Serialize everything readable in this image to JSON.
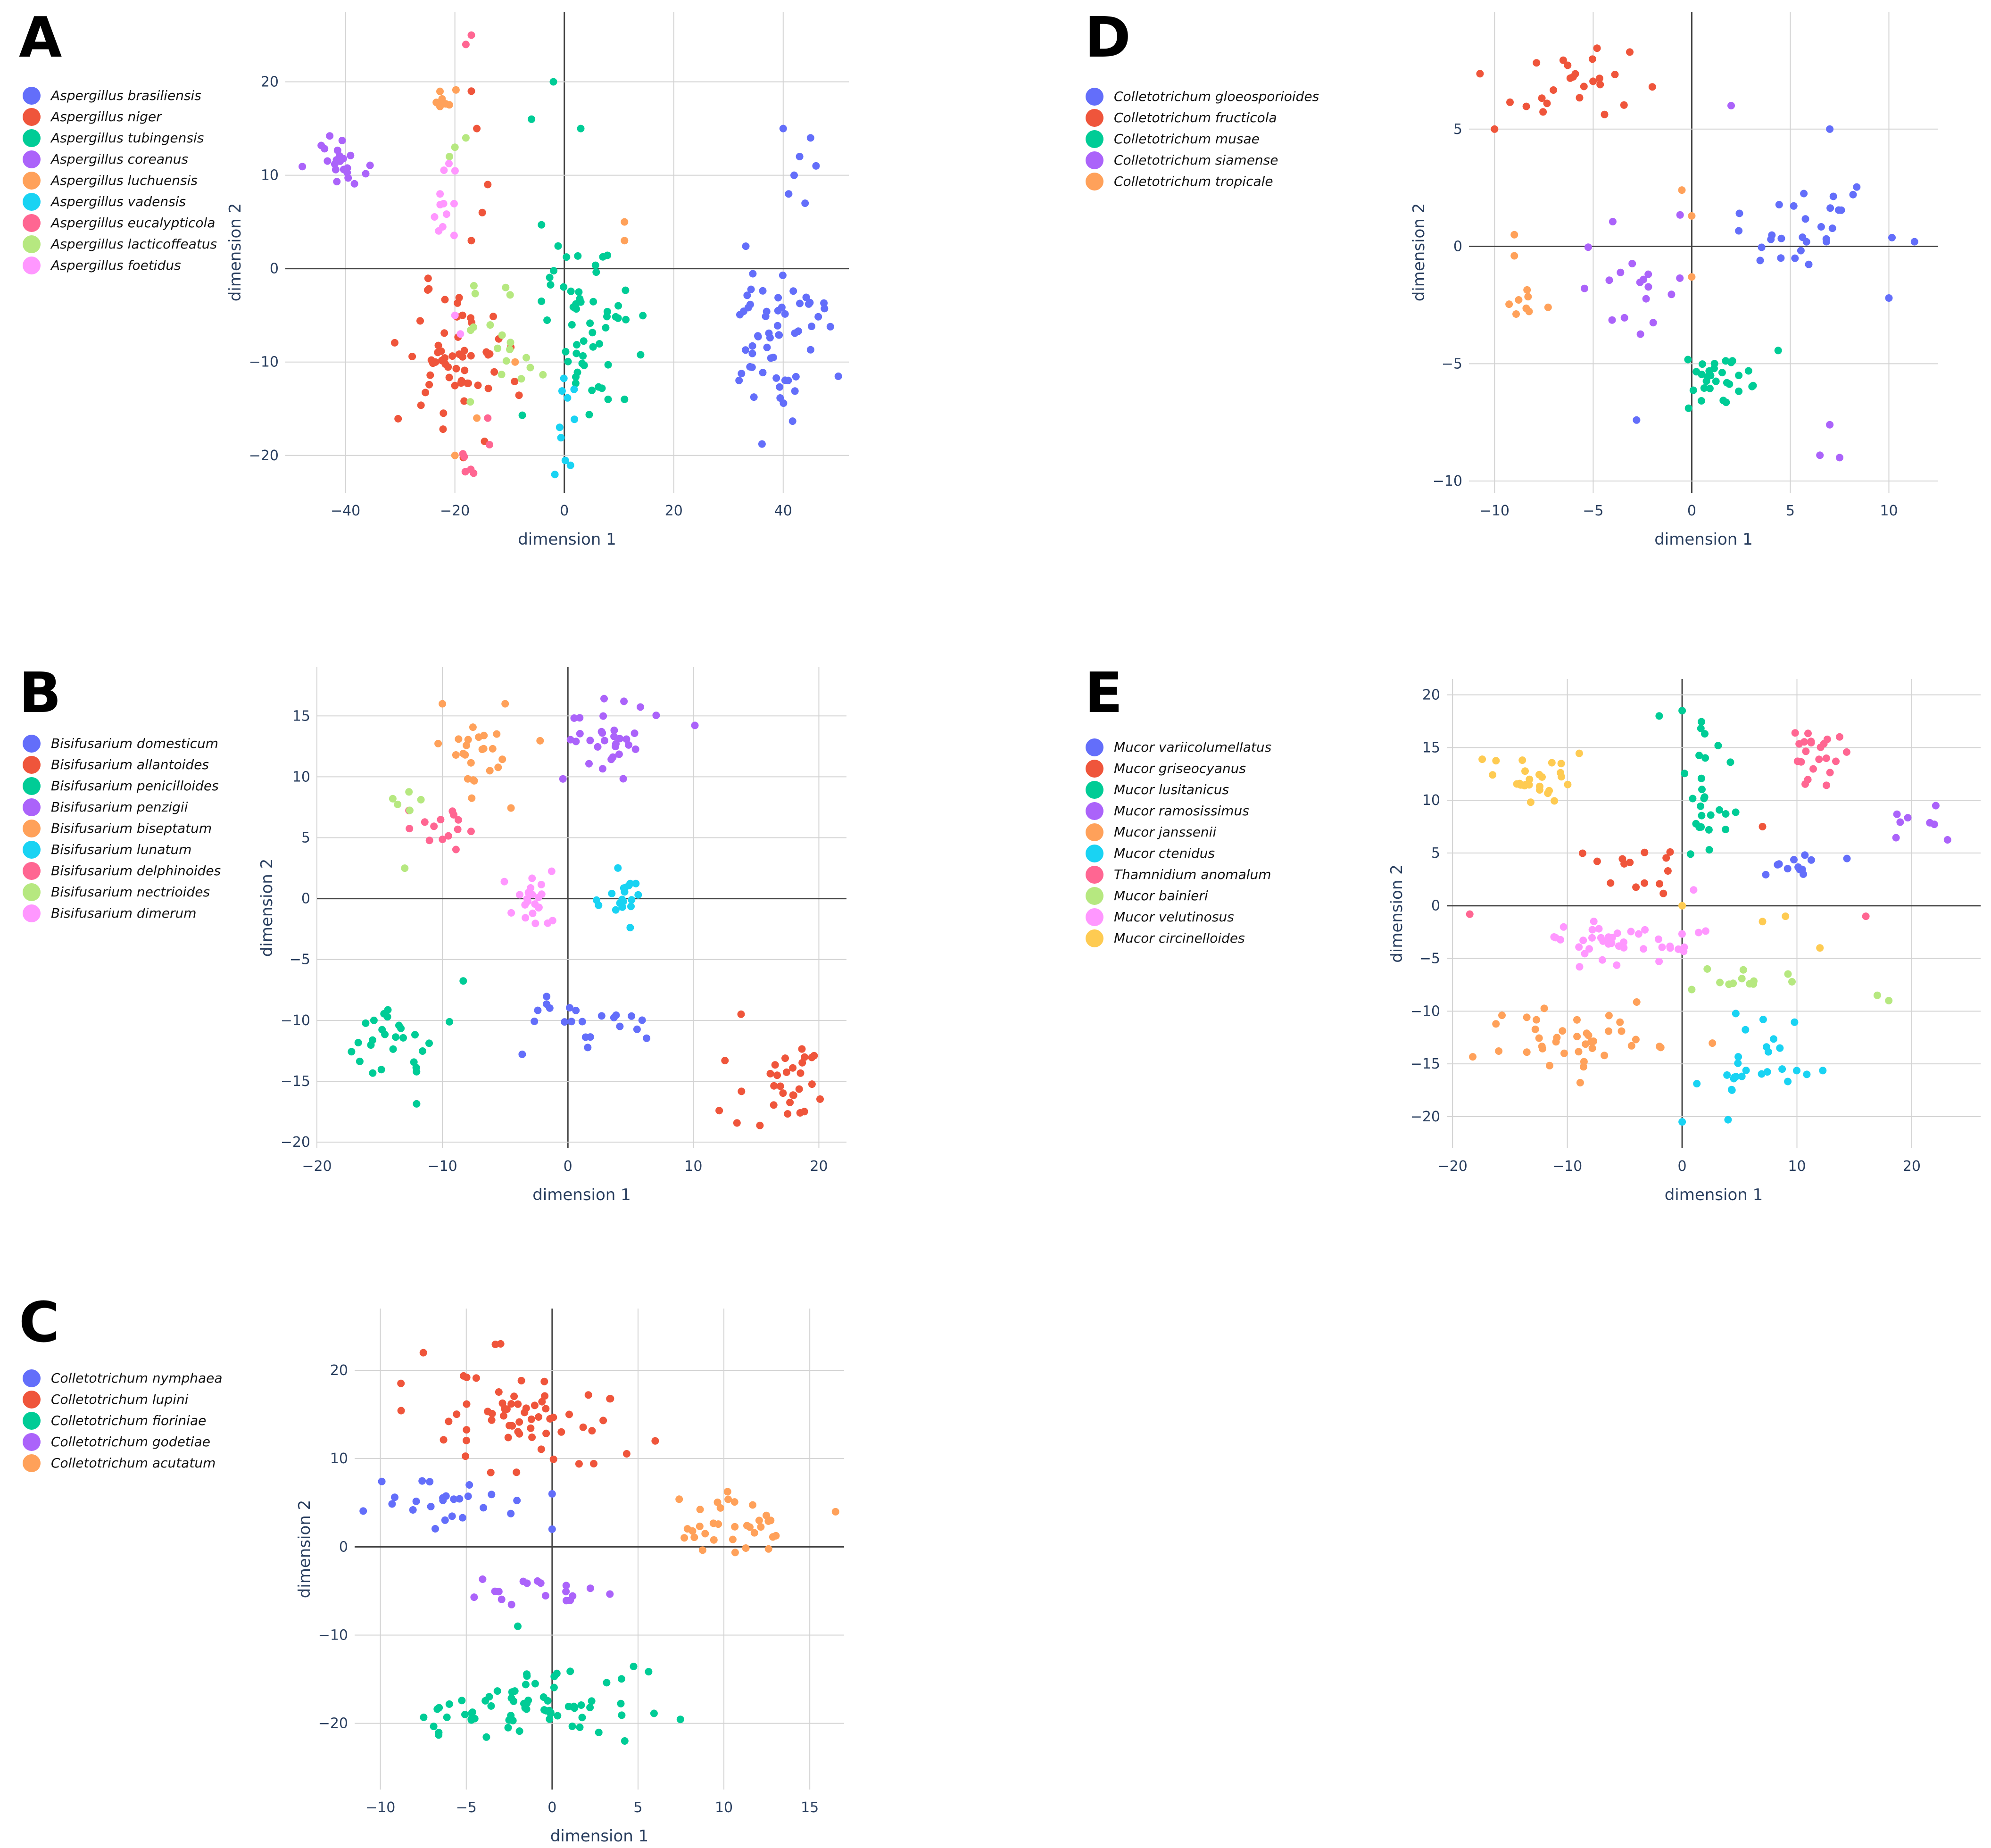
{
  "chart_data": [
    {
      "panel": "A",
      "type": "scatter",
      "xlabel": "dimension 1",
      "ylabel": "dimension 2",
      "xlim": [
        -51,
        52
      ],
      "ylim": [
        -24,
        27.5
      ],
      "xticks": [
        -40,
        -20,
        0,
        20,
        40
      ],
      "yticks": [
        -20,
        -10,
        0,
        10,
        20
      ],
      "xtick_labels": [
        "−40",
        "−20",
        "0",
        "20",
        "40"
      ],
      "ytick_labels": [
        "−20",
        "−10",
        "0",
        "10",
        "20"
      ],
      "grid": true,
      "legend_position": "left",
      "series": [
        {
          "name": "Aspergillus brasiliensis",
          "color": "#636efa",
          "center": [
            38,
            -7
          ],
          "spread": [
            6,
            6
          ],
          "n": 60,
          "extra": [
            [
              43,
              12
            ],
            [
              42,
              10
            ],
            [
              45,
              14
            ],
            [
              41,
              8
            ],
            [
              40,
              15
            ],
            [
              46,
              11
            ],
            [
              44,
              7
            ]
          ]
        },
        {
          "name": "Aspergillus niger",
          "color": "#ef553b",
          "center": [
            -20,
            -10
          ],
          "spread": [
            7,
            5
          ],
          "n": 60,
          "extra": [
            [
              -17,
              19
            ],
            [
              -16,
              15
            ],
            [
              -14,
              9
            ],
            [
              -17,
              3
            ],
            [
              -15,
              6
            ]
          ]
        },
        {
          "name": "Aspergillus tubingensis",
          "color": "#00cc96",
          "center": [
            4,
            -5
          ],
          "spread": [
            6,
            8
          ],
          "n": 55,
          "extra": [
            [
              -6,
              16
            ],
            [
              3,
              15
            ],
            [
              -2,
              20
            ],
            [
              8,
              -14
            ],
            [
              11,
              -14
            ]
          ]
        },
        {
          "name": "Aspergillus coreanus",
          "color": "#ab63fa",
          "center": [
            -41,
            11
          ],
          "spread": [
            3,
            2.5
          ],
          "n": 22,
          "extra": []
        },
        {
          "name": "Aspergillus luchuensis",
          "color": "#ffa15a",
          "center": [
            -22,
            18
          ],
          "spread": [
            2.5,
            1.5
          ],
          "n": 8,
          "extra": [
            [
              11,
              5
            ],
            [
              11,
              3
            ],
            [
              -9,
              -10
            ],
            [
              -16,
              -16
            ],
            [
              -20,
              -20
            ]
          ]
        },
        {
          "name": "Aspergillus vadensis",
          "color": "#19d3f3",
          "center": [
            0,
            -17
          ],
          "spread": [
            1.5,
            4
          ],
          "n": 10,
          "extra": []
        },
        {
          "name": "Aspergillus eucalypticola",
          "color": "#ff6692",
          "center": [
            -17,
            -20
          ],
          "spread": [
            2,
            1.5
          ],
          "n": 6,
          "extra": [
            [
              -17,
              25
            ],
            [
              -18,
              24
            ],
            [
              -14,
              -16
            ]
          ]
        },
        {
          "name": "Aspergillus lacticoffeatus",
          "color": "#b6e880",
          "center": [
            -12,
            -8
          ],
          "spread": [
            4,
            5
          ],
          "n": 18,
          "extra": [
            [
              -20,
              13
            ],
            [
              -21,
              12
            ],
            [
              -18,
              14
            ]
          ]
        },
        {
          "name": "Aspergillus foetidus",
          "color": "#ff97ff",
          "center": [
            -23,
            6
          ],
          "spread": [
            2,
            4
          ],
          "n": 12,
          "extra": [
            [
              -20,
              -5
            ],
            [
              -19,
              -7
            ]
          ]
        }
      ]
    },
    {
      "panel": "B",
      "type": "scatter",
      "xlabel": "dimension 1",
      "ylabel": "dimension 2",
      "xlim": [
        -20,
        22.2
      ],
      "ylim": [
        -20.5,
        19
      ],
      "xticks": [
        -20,
        -10,
        0,
        10,
        20
      ],
      "yticks": [
        -20,
        -15,
        -10,
        -5,
        0,
        5,
        10,
        15
      ],
      "xtick_labels": [
        "−20",
        "−10",
        "0",
        "10",
        "20"
      ],
      "ytick_labels": [
        "−20",
        "−15",
        "−10",
        "−5",
        "0",
        "5",
        "10",
        "15"
      ],
      "grid": true,
      "legend_position": "left",
      "series": [
        {
          "name": "Bisifusarium domesticum",
          "color": "#636efa",
          "center": [
            1.5,
            -10.5
          ],
          "spread": [
            3.5,
            1.8
          ],
          "n": 22,
          "extra": []
        },
        {
          "name": "Bisifusarium allantoides",
          "color": "#ef553b",
          "center": [
            17,
            -15
          ],
          "spread": [
            2.5,
            2
          ],
          "n": 30,
          "extra": [
            [
              13.8,
              -9.5
            ]
          ]
        },
        {
          "name": "Bisifusarium penicilloides",
          "color": "#00cc96",
          "center": [
            -13.5,
            -11.5
          ],
          "spread": [
            2.5,
            3
          ],
          "n": 28,
          "extra": []
        },
        {
          "name": "Bisifusarium penzigii",
          "color": "#ab63fa",
          "center": [
            3.5,
            13
          ],
          "spread": [
            3,
            2
          ],
          "n": 32,
          "extra": []
        },
        {
          "name": "Bisifusarium biseptatum",
          "color": "#ffa15a",
          "center": [
            -7,
            12
          ],
          "spread": [
            2.5,
            2.2
          ],
          "n": 24,
          "extra": [
            [
              -10,
              16
            ],
            [
              -5,
              16
            ]
          ]
        },
        {
          "name": "Bisifusarium lunatum",
          "color": "#19d3f3",
          "center": [
            5,
            0
          ],
          "spread": [
            1.5,
            1.6
          ],
          "n": 20,
          "extra": []
        },
        {
          "name": "Bisifusarium delphinoides",
          "color": "#ff6692",
          "center": [
            -10.5,
            6
          ],
          "spread": [
            2,
            1.5
          ],
          "n": 14,
          "extra": []
        },
        {
          "name": "Bisifusarium nectrioides",
          "color": "#b6e880",
          "center": [
            -13.5,
            8.5
          ],
          "spread": [
            1,
            1
          ],
          "n": 5,
          "extra": [
            [
              -13,
              2.5
            ]
          ]
        },
        {
          "name": "Bisifusarium dimerum",
          "color": "#ff97ff",
          "center": [
            -3,
            -0.2
          ],
          "spread": [
            1.5,
            1.4
          ],
          "n": 22,
          "extra": []
        }
      ]
    },
    {
      "panel": "C",
      "type": "scatter",
      "xlabel": "dimension 1",
      "ylabel": "dimension 2",
      "xlim": [
        -11.5,
        17
      ],
      "ylim": [
        -27.5,
        27
      ],
      "xticks": [
        -10,
        -5,
        0,
        5,
        10,
        15
      ],
      "yticks": [
        -20,
        -10,
        0,
        10,
        20
      ],
      "xtick_labels": [
        "−10",
        "−5",
        "0",
        "5",
        "10",
        "15"
      ],
      "ytick_labels": [
        "−20",
        "−10",
        "0",
        "10",
        "20"
      ],
      "grid": true,
      "legend_position": "left",
      "series": [
        {
          "name": "Colletotrichum nymphaea",
          "color": "#636efa",
          "center": [
            -6,
            5
          ],
          "spread": [
            3,
            1.8
          ],
          "n": 24,
          "extra": [
            [
              0,
              6
            ],
            [
              0,
              2
            ]
          ]
        },
        {
          "name": "Colletotrichum lupini",
          "color": "#ef553b",
          "center": [
            -2,
            15
          ],
          "spread": [
            4,
            3.5
          ],
          "n": 60,
          "extra": [
            [
              -3,
              23
            ],
            [
              -7.5,
              22
            ],
            [
              6,
              12
            ]
          ]
        },
        {
          "name": "Colletotrichum fioriniae",
          "color": "#00cc96",
          "center": [
            -1,
            -18
          ],
          "spread": [
            4.5,
            3
          ],
          "n": 70,
          "extra": [
            [
              -2,
              -9
            ]
          ]
        },
        {
          "name": "Colletotrichum godetiae",
          "color": "#ab63fa",
          "center": [
            -1,
            -5
          ],
          "spread": [
            3,
            1.2
          ],
          "n": 18,
          "extra": []
        },
        {
          "name": "Colletotrichum acutatum",
          "color": "#ffa15a",
          "center": [
            10.5,
            2.5
          ],
          "spread": [
            2.5,
            2
          ],
          "n": 34,
          "extra": []
        }
      ]
    },
    {
      "panel": "D",
      "type": "scatter",
      "xlabel": "dimension 1",
      "ylabel": "dimension 2",
      "xlim": [
        -11.3,
        12.5
      ],
      "ylim": [
        -10.5,
        10
      ],
      "xticks": [
        -10,
        -5,
        0,
        5,
        10
      ],
      "yticks": [
        -10,
        -5,
        0,
        5
      ],
      "xtick_labels": [
        "−10",
        "−5",
        "0",
        "5",
        "10"
      ],
      "ytick_labels": [
        "−10",
        "−5",
        "0",
        "5"
      ],
      "grid": true,
      "legend_position": "left",
      "series": [
        {
          "name": "Colletotrichum gloeosporioides",
          "color": "#636efa",
          "center": [
            6,
            1
          ],
          "spread": [
            2.2,
            1.3
          ],
          "n": 28,
          "extra": [
            [
              11.3,
              0.2
            ],
            [
              10,
              -2.2
            ],
            [
              -2.8,
              -7.4
            ],
            [
              7,
              5
            ]
          ]
        },
        {
          "name": "Colletotrichum fructicola",
          "color": "#ef553b",
          "center": [
            -6,
            7
          ],
          "spread": [
            2.7,
            1.1
          ],
          "n": 24,
          "extra": [
            [
              -10,
              5
            ],
            [
              -2,
              6.8
            ]
          ]
        },
        {
          "name": "Colletotrichum musae",
          "color": "#00cc96",
          "center": [
            1.5,
            -5.5
          ],
          "spread": [
            1.3,
            1
          ],
          "n": 30,
          "extra": []
        },
        {
          "name": "Colletotrichum siamense",
          "color": "#ab63fa",
          "center": [
            -3.5,
            -1.8
          ],
          "spread": [
            2,
            1.5
          ],
          "n": 18,
          "extra": [
            [
              7.5,
              -9
            ],
            [
              7,
              -7.6
            ],
            [
              6.5,
              -8.9
            ],
            [
              2,
              6
            ]
          ]
        },
        {
          "name": "Colletotrichum tropicale",
          "color": "#ffa15a",
          "center": [
            -8,
            -2.5
          ],
          "spread": [
            0.8,
            0.4
          ],
          "n": 8,
          "extra": [
            [
              -9,
              0.5
            ],
            [
              -9,
              -0.4
            ],
            [
              0,
              1.3
            ],
            [
              -0.5,
              2.4
            ],
            [
              0,
              -1.3
            ]
          ]
        }
      ]
    },
    {
      "panel": "E",
      "type": "scatter",
      "xlabel": "dimension 1",
      "ylabel": "dimension 2",
      "xlim": [
        -20.5,
        26
      ],
      "ylim": [
        -23,
        21.5
      ],
      "xticks": [
        -20,
        -10,
        0,
        10,
        20
      ],
      "yticks": [
        -20,
        -15,
        -10,
        -5,
        0,
        5,
        10,
        15,
        20
      ],
      "xtick_labels": [
        "−20",
        "−10",
        "0",
        "10",
        "20"
      ],
      "ytick_labels": [
        "−20",
        "−15",
        "−10",
        "−5",
        "0",
        "5",
        "10",
        "15",
        "20"
      ],
      "grid": true,
      "legend_position": "left",
      "series": [
        {
          "name": "Mucor variicolumellatus",
          "color": "#636efa",
          "center": [
            9,
            3.5
          ],
          "spread": [
            2,
            1
          ],
          "n": 12,
          "extra": []
        },
        {
          "name": "Mucor griseocyanus",
          "color": "#ef553b",
          "center": [
            -4,
            4
          ],
          "spread": [
            3.5,
            2
          ],
          "n": 14,
          "extra": [
            [
              7,
              7.5
            ]
          ]
        },
        {
          "name": "Mucor lusitanicus",
          "color": "#00cc96",
          "center": [
            2,
            10
          ],
          "spread": [
            2,
            4
          ],
          "n": 26,
          "extra": [
            [
              -2,
              18
            ],
            [
              0,
              18.5
            ]
          ]
        },
        {
          "name": "Mucor ramosissimus",
          "color": "#ab63fa",
          "center": [
            21,
            7.5
          ],
          "spread": [
            2,
            1.5
          ],
          "n": 8,
          "extra": []
        },
        {
          "name": "Mucor janssenii",
          "color": "#ffa15a",
          "center": [
            -9,
            -12.5
          ],
          "spread": [
            5,
            2
          ],
          "n": 40,
          "extra": []
        },
        {
          "name": "Mucor ctenidus",
          "color": "#19d3f3",
          "center": [
            7,
            -15
          ],
          "spread": [
            3.5,
            3
          ],
          "n": 26,
          "extra": [
            [
              0,
              -20.5
            ],
            [
              4,
              -20.3
            ]
          ]
        },
        {
          "name": "Thamnidium anomalum",
          "color": "#ff6692",
          "center": [
            11.5,
            14
          ],
          "spread": [
            2,
            2.5
          ],
          "n": 22,
          "extra": [
            [
              -18.5,
              -0.8
            ],
            [
              16,
              -1
            ]
          ]
        },
        {
          "name": "Mucor bainieri",
          "color": "#b6e880",
          "center": [
            5,
            -7
          ],
          "spread": [
            3,
            1
          ],
          "n": 12,
          "extra": [
            [
              18,
              -9
            ],
            [
              17,
              -8.5
            ]
          ]
        },
        {
          "name": "Mucor velutinosus",
          "color": "#ff97ff",
          "center": [
            -6,
            -3
          ],
          "spread": [
            5,
            1.5
          ],
          "n": 40,
          "extra": [
            [
              1,
              1.5
            ]
          ]
        },
        {
          "name": "Mucor circinelloides",
          "color": "#fecb52",
          "center": [
            -13,
            12
          ],
          "spread": [
            2.5,
            2.5
          ],
          "n": 26,
          "extra": [
            [
              0,
              0
            ],
            [
              7,
              -1.5
            ],
            [
              9,
              -1
            ],
            [
              12,
              -4
            ]
          ]
        }
      ]
    }
  ]
}
